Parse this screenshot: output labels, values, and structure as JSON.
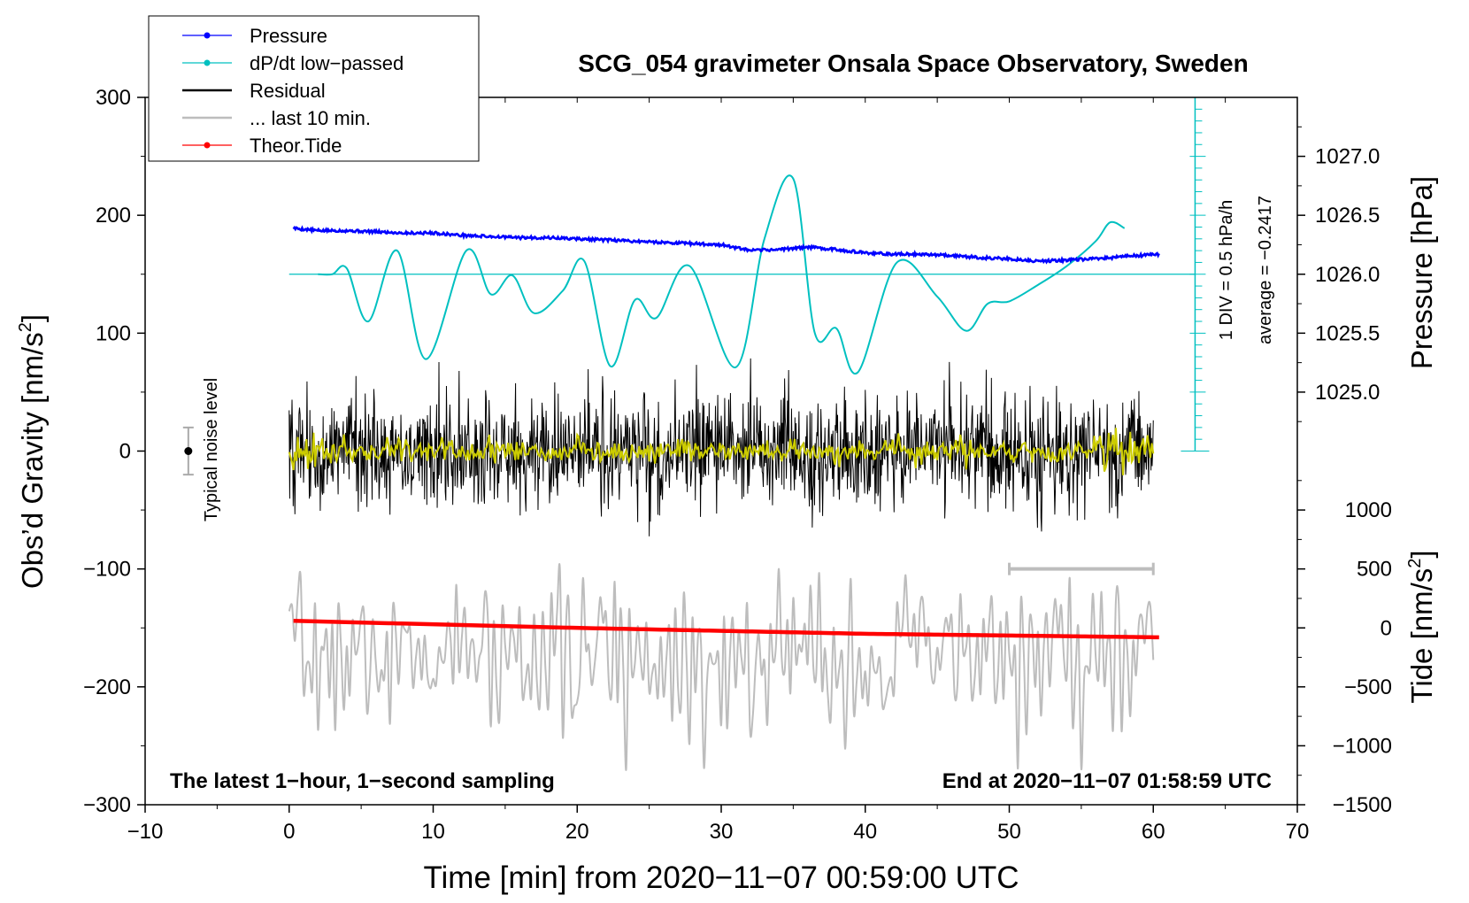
{
  "chart_data": {
    "type": "line",
    "title": "SCG_054 gravimeter Onsala Space Observatory, Sweden",
    "xlabel": "Time [min] from 2020−11−07 00:59:00 UTC",
    "xlim": [
      -10,
      70
    ],
    "x_ticks": [
      -10,
      0,
      10,
      20,
      30,
      40,
      50,
      60,
      70
    ],
    "x_tick_labels": [
      "−10",
      "0",
      "10",
      "20",
      "30",
      "40",
      "50",
      "60",
      "70"
    ],
    "left_axis": {
      "label": "Obs’d Gravity [nm/s²]",
      "label_main": "Obs’d Gravity [nm/s",
      "label_sup": "2",
      "label_end": "]",
      "ylim": [
        -300,
        300
      ],
      "ticks": [
        300,
        200,
        100,
        0,
        -100,
        -200,
        -300
      ],
      "tick_labels": [
        "300",
        "200",
        "100",
        "0",
        "−100",
        "−200",
        "−300"
      ]
    },
    "right_pressure_axis": {
      "label": "Pressure [hPa]",
      "ticks": [
        1027.0,
        1026.5,
        1026.0,
        1025.5,
        1025.0
      ],
      "tick_labels": [
        "1027.0",
        "1026.5",
        "1026.0",
        "1025.5",
        "1025.0"
      ],
      "map": {
        "value_a": 1026.0,
        "grav_a": 150,
        "value_b": 1027.0,
        "grav_b": 250
      }
    },
    "right_tide_axis": {
      "label": "Tide [nm/s²]",
      "label_main": "Tide [nm/s",
      "label_sup": "2",
      "label_end": "]",
      "ticks": [
        1000,
        500,
        0,
        -500,
        -1000,
        -1500
      ],
      "tick_labels": [
        "1000",
        "500",
        "0",
        "−500",
        "−1000",
        "−1500"
      ],
      "map": {
        "value_a": 0,
        "grav_a": -150,
        "value_b": 1000,
        "grav_b": -50
      }
    },
    "dpdt_scale": {
      "label_div": "1 DIV = 0.5 hPa/h",
      "label_avg": "average = −0.2417",
      "x_min": 62.9,
      "zero_grav": 150,
      "top_grav": 300,
      "bottom_grav": 0,
      "minor_step": 10,
      "major_step": 50
    },
    "noise_bar": {
      "label": "Typical noise level",
      "x_min": -7,
      "center": 0,
      "half_range": 20
    },
    "window_bar": {
      "x_start": 50,
      "x_end": 60,
      "grav": -100
    },
    "legend": [
      {
        "label": "Pressure",
        "color": "#0000ff",
        "marker": true
      },
      {
        "label": "dP/dt low−passed",
        "color": "#00c0c0",
        "marker": true
      },
      {
        "label": "Residual",
        "color": "#000000",
        "marker": false
      },
      {
        "label": "... last 10 min.",
        "color": "#bdbdbd",
        "marker": false
      },
      {
        "label": "Theor.Tide",
        "color": "#ff0000",
        "marker": true
      }
    ],
    "annotation_left": "The latest 1−hour, 1−second sampling",
    "annotation_right": "End at 2020−11−07 01:58:59 UTC",
    "series": [
      {
        "name": "Pressure",
        "axis": "pressure_hPa",
        "color": "#0000ff",
        "x": [
          0.3,
          2,
          4,
          6,
          8,
          10,
          12,
          14,
          16,
          18,
          20,
          22,
          24,
          26,
          28,
          30,
          32,
          34,
          36,
          38,
          40,
          42,
          44,
          46,
          48,
          50,
          52,
          54,
          56,
          58,
          60.4
        ],
        "values": [
          1026.39,
          1026.37,
          1026.37,
          1026.36,
          1026.35,
          1026.35,
          1026.33,
          1026.32,
          1026.31,
          1026.31,
          1026.3,
          1026.29,
          1026.28,
          1026.27,
          1026.26,
          1026.25,
          1026.2,
          1026.21,
          1026.23,
          1026.21,
          1026.18,
          1026.17,
          1026.17,
          1026.16,
          1026.14,
          1026.13,
          1026.11,
          1026.12,
          1026.13,
          1026.15,
          1026.17
        ],
        "noise_amp": 0.012
      },
      {
        "name": "dP/dt low−passed",
        "axis": "gravity_display",
        "color": "#00c0c0",
        "x": [
          2,
          3,
          4,
          5.5,
          7.5,
          9.5,
          12.3,
          14,
          15.5,
          17,
          19,
          20.5,
          22.3,
          24,
          25.5,
          27.8,
          31,
          33,
          35,
          36.5,
          38,
          39.5,
          42.2,
          45,
          47,
          48.5,
          50,
          52,
          54,
          56,
          57,
          58
        ],
        "values": [
          150,
          150,
          155,
          110,
          170,
          78,
          170,
          133,
          149,
          117,
          136,
          161,
          72,
          128,
          113,
          157,
          71,
          180,
          231,
          100,
          104,
          67,
          160,
          131,
          102,
          125,
          127,
          141,
          157,
          178,
          194,
          189
        ]
      },
      {
        "name": "Residual",
        "axis": "gravity",
        "color": "#000000",
        "x_range": [
          0,
          60
        ],
        "amplitude": 42,
        "peak_min": -105,
        "peak_max": 98
      },
      {
        "name": "... last 10 min.",
        "axis": "gravity_display",
        "color": "#bdbdbd",
        "x_range": [
          0,
          60
        ],
        "center": -175,
        "amplitude": 45,
        "peak_min": -270,
        "peak_max": -100
      },
      {
        "name": "Theor.Tide",
        "axis": "tide_nm_s2",
        "color": "#ff0000",
        "x": [
          0.3,
          20,
          40,
          60.4
        ],
        "values": [
          60,
          0,
          -50,
          -80
        ]
      },
      {
        "name": "Residual (smoothed)",
        "axis": "gravity",
        "color": "#cccc00",
        "x_range": [
          0,
          60
        ],
        "amplitude": 8
      }
    ]
  }
}
